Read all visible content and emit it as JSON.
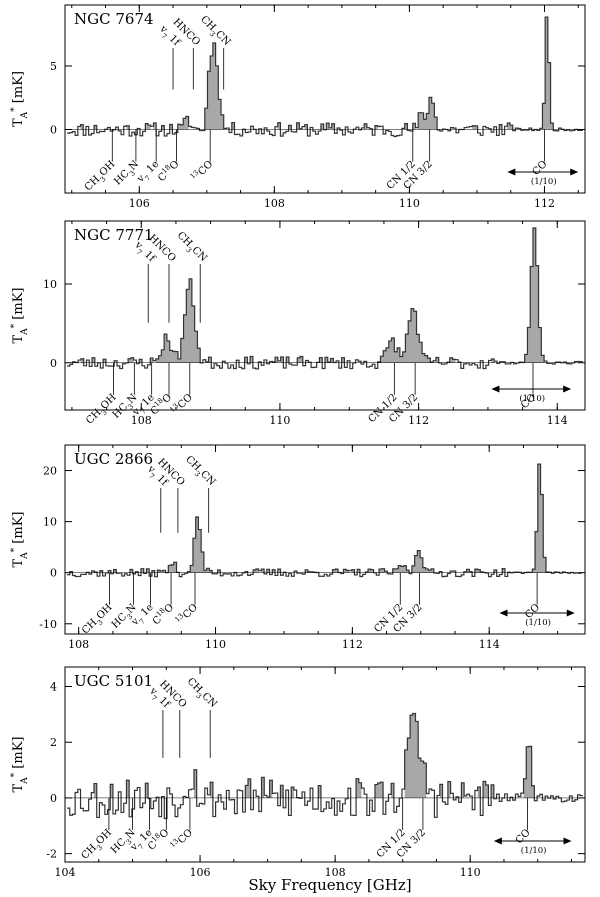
{
  "figure": {
    "xlabel": "Sky Frequency [GHz]"
  },
  "chart_data": [
    {
      "type": "bar",
      "title": "NGC 7674",
      "ylabel": "T_A* [mK]",
      "xlim": [
        104.9,
        112.6
      ],
      "ylim": [
        -5,
        9.8
      ],
      "xticks": [
        106,
        108,
        110,
        112
      ],
      "yticks": [
        0,
        5
      ],
      "line_labels": [
        {
          "text": "CH3OH",
          "x": 105.6,
          "side": "below"
        },
        {
          "text": "HC3N",
          "x": 105.95,
          "side": "below"
        },
        {
          "text": "v7 1e",
          "x": 106.25,
          "side": "below"
        },
        {
          "text": "v7 1f",
          "x": 106.5,
          "side": "above"
        },
        {
          "text": "C18O",
          "x": 106.55,
          "side": "below"
        },
        {
          "text": "HNCO",
          "x": 106.8,
          "side": "above"
        },
        {
          "text": "13CO",
          "x": 107.05,
          "side": "below"
        },
        {
          "text": "CH3CN",
          "x": 107.25,
          "side": "above"
        },
        {
          "text": "CN 1/2",
          "x": 110.05,
          "side": "below"
        },
        {
          "text": "CN 3/2",
          "x": 110.3,
          "side": "below"
        },
        {
          "text": "CO",
          "x": 112.0,
          "side": "below"
        }
      ],
      "co_note": "(1/10)",
      "co_range": [
        111.45,
        112.5
      ],
      "scaled_from": 111.5,
      "peaks": [
        {
          "x": 107.1,
          "h": 6.2,
          "w": 0.08
        },
        {
          "x": 107.02,
          "h": 3.0,
          "w": 0.05
        },
        {
          "x": 106.7,
          "h": 0.8,
          "w": 0.06
        },
        {
          "x": 110.3,
          "h": 2.4,
          "w": 0.08
        },
        {
          "x": 110.15,
          "h": 1.0,
          "w": 0.05
        },
        {
          "x": 112.02,
          "h": 9.4,
          "w": 0.04
        }
      ],
      "noise": 0.55,
      "seed": 11
    },
    {
      "type": "bar",
      "title": "NGC 7771",
      "ylabel": "T_A* [mK]",
      "xlim": [
        106.9,
        114.4
      ],
      "ylim": [
        -6,
        18
      ],
      "xticks": [
        108,
        110,
        112,
        114
      ],
      "yticks": [
        0,
        10
      ],
      "line_labels": [
        {
          "text": "CH3OH",
          "x": 107.6,
          "side": "below"
        },
        {
          "text": "HC3N",
          "x": 107.9,
          "side": "below"
        },
        {
          "text": "v7 1e",
          "x": 108.15,
          "side": "below"
        },
        {
          "text": "v7 1f",
          "x": 108.1,
          "side": "above"
        },
        {
          "text": "C18O",
          "x": 108.4,
          "side": "below"
        },
        {
          "text": "HNCO",
          "x": 108.4,
          "side": "above"
        },
        {
          "text": "13CO",
          "x": 108.7,
          "side": "below"
        },
        {
          "text": "CH3CN",
          "x": 108.85,
          "side": "above"
        },
        {
          "text": "CN 1/2",
          "x": 111.65,
          "side": "below"
        },
        {
          "text": "CN 3/2",
          "x": 111.95,
          "side": "below"
        },
        {
          "text": "CO",
          "x": 113.65,
          "side": "below"
        }
      ],
      "co_note": "(1/10)",
      "co_range": [
        113.05,
        114.2
      ],
      "scaled_from": 113.1,
      "peaks": [
        {
          "x": 108.68,
          "h": 10.0,
          "w": 0.1
        },
        {
          "x": 108.35,
          "h": 3.2,
          "w": 0.1
        },
        {
          "x": 111.9,
          "h": 7.0,
          "w": 0.1
        },
        {
          "x": 111.6,
          "h": 2.8,
          "w": 0.1
        },
        {
          "x": 113.65,
          "h": 17.0,
          "w": 0.07
        }
      ],
      "noise": 0.8,
      "seed": 23
    },
    {
      "type": "bar",
      "title": "UGC 2866",
      "ylabel": "T_A* [mK]",
      "xlim": [
        107.8,
        115.4
      ],
      "ylim": [
        -12,
        25
      ],
      "xticks": [
        108,
        110,
        112,
        114
      ],
      "yticks": [
        -10,
        0,
        10,
        20
      ],
      "line_labels": [
        {
          "text": "CH3OH",
          "x": 108.45,
          "side": "below"
        },
        {
          "text": "HC3N",
          "x": 108.8,
          "side": "below"
        },
        {
          "text": "v7 1e",
          "x": 109.05,
          "side": "below"
        },
        {
          "text": "v7 1f",
          "x": 109.2,
          "side": "above"
        },
        {
          "text": "C18O",
          "x": 109.35,
          "side": "below"
        },
        {
          "text": "HNCO",
          "x": 109.45,
          "side": "above"
        },
        {
          "text": "13CO",
          "x": 109.7,
          "side": "below"
        },
        {
          "text": "CH3CN",
          "x": 109.9,
          "side": "above"
        },
        {
          "text": "CN 1/2",
          "x": 112.7,
          "side": "below"
        },
        {
          "text": "CN 3/2",
          "x": 112.98,
          "side": "below"
        },
        {
          "text": "CO",
          "x": 114.7,
          "side": "below"
        }
      ],
      "co_note": "(1/10)",
      "co_range": [
        114.15,
        115.25
      ],
      "scaled_from": 114.3,
      "peaks": [
        {
          "x": 109.72,
          "h": 10.5,
          "w": 0.07
        },
        {
          "x": 109.35,
          "h": 2.0,
          "w": 0.06
        },
        {
          "x": 112.95,
          "h": 5.0,
          "w": 0.07
        },
        {
          "x": 112.7,
          "h": 1.8,
          "w": 0.06
        },
        {
          "x": 114.72,
          "h": 22.0,
          "w": 0.05
        }
      ],
      "noise": 0.8,
      "seed": 37
    },
    {
      "type": "bar",
      "title": "UGC 5101",
      "ylabel": "T_A* [mK]",
      "xlim": [
        104.0,
        111.7
      ],
      "ylim": [
        -2.3,
        4.7
      ],
      "xticks": [
        104,
        106,
        108,
        110
      ],
      "yticks": [
        -2,
        0,
        2,
        4
      ],
      "line_labels": [
        {
          "text": "CH3OH",
          "x": 104.65,
          "side": "below"
        },
        {
          "text": "HC3N",
          "x": 105.0,
          "side": "below"
        },
        {
          "text": "v7 1e",
          "x": 105.25,
          "side": "below"
        },
        {
          "text": "v7 1f",
          "x": 105.45,
          "side": "above"
        },
        {
          "text": "C18O",
          "x": 105.5,
          "side": "below"
        },
        {
          "text": "HNCO",
          "x": 105.7,
          "side": "above"
        },
        {
          "text": "13CO",
          "x": 105.85,
          "side": "below"
        },
        {
          "text": "CH3CN",
          "x": 106.15,
          "side": "above"
        },
        {
          "text": "CN 1/2",
          "x": 109.0,
          "side": "below"
        },
        {
          "text": "CN 3/2",
          "x": 109.3,
          "side": "below"
        },
        {
          "text": "CO",
          "x": 110.85,
          "side": "below"
        }
      ],
      "co_note": "(1/10)",
      "co_range": [
        110.35,
        111.5
      ],
      "scaled_from": 110.35,
      "peaks": [
        {
          "x": 109.15,
          "h": 2.5,
          "w": 0.15
        },
        {
          "x": 105.85,
          "h": 0.9,
          "w": 0.1
        },
        {
          "x": 110.85,
          "h": 2.3,
          "w": 0.05
        }
      ],
      "noise": 0.75,
      "seed": 53
    }
  ]
}
